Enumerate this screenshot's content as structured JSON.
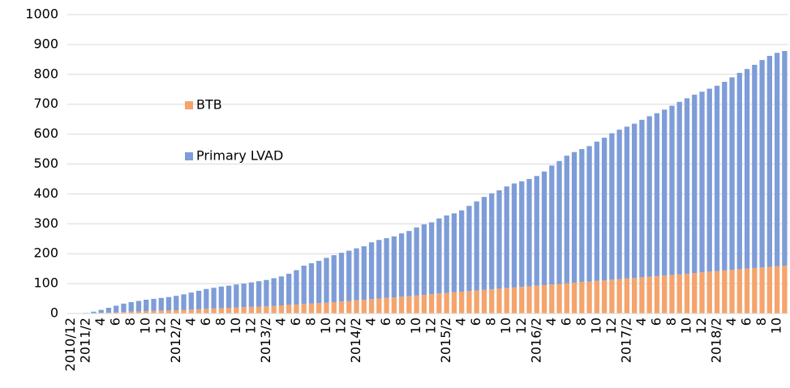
{
  "chart_data": {
    "type": "stacked_bar",
    "categories": [
      "2010/12",
      null,
      "2011/2",
      null,
      "4",
      null,
      "6",
      null,
      "8",
      null,
      "10",
      null,
      "12",
      null,
      "2012/2",
      null,
      "4",
      null,
      "6",
      null,
      "8",
      null,
      "10",
      null,
      "12",
      null,
      "2013/2",
      null,
      "4",
      null,
      "6",
      null,
      "8",
      null,
      "10",
      null,
      "12",
      null,
      "2014/2",
      null,
      "4",
      null,
      "6",
      null,
      "8",
      null,
      "10",
      null,
      "12",
      null,
      "2015/2",
      null,
      "4",
      null,
      "6",
      null,
      "8",
      null,
      "10",
      null,
      "12",
      null,
      "2016/2",
      null,
      "4",
      null,
      "6",
      null,
      "8",
      null,
      "10",
      null,
      "12",
      null,
      "2017/2",
      null,
      "4",
      null,
      "6",
      null,
      "8",
      null,
      "10",
      null,
      "12",
      null,
      "2018/2",
      null,
      "4",
      null,
      "6",
      null,
      "8",
      null,
      "10",
      null
    ],
    "series": [
      {
        "name": "BTB",
        "color": "#f4a46c",
        "values": [
          0,
          0,
          0,
          1,
          2,
          3,
          4,
          5,
          6,
          7,
          8,
          9,
          10,
          10,
          11,
          12,
          13,
          14,
          16,
          17,
          18,
          19,
          20,
          21,
          22,
          23,
          24,
          25,
          27,
          29,
          30,
          32,
          33,
          35,
          36,
          38,
          40,
          42,
          44,
          46,
          48,
          50,
          52,
          54,
          56,
          58,
          60,
          62,
          65,
          67,
          69,
          71,
          73,
          75,
          77,
          79,
          81,
          83,
          85,
          87,
          89,
          91,
          93,
          95,
          97,
          99,
          101,
          103,
          105,
          107,
          109,
          111,
          113,
          115,
          117,
          119,
          121,
          123,
          125,
          127,
          129,
          131,
          133,
          135,
          138,
          140,
          142,
          144,
          146,
          148,
          150,
          152,
          154,
          156,
          158,
          160
        ]
      },
      {
        "name": "Primary LVAD",
        "color": "#7e9dd8",
        "values": [
          1,
          1,
          2,
          5,
          10,
          16,
          22,
          28,
          32,
          35,
          38,
          40,
          42,
          45,
          48,
          52,
          57,
          62,
          66,
          69,
          72,
          74,
          77,
          79,
          82,
          85,
          88,
          93,
          97,
          104,
          115,
          128,
          135,
          141,
          150,
          157,
          163,
          168,
          174,
          179,
          190,
          196,
          200,
          204,
          212,
          218,
          228,
          236,
          240,
          251,
          259,
          264,
          272,
          285,
          298,
          311,
          321,
          329,
          340,
          348,
          353,
          359,
          367,
          380,
          398,
          411,
          427,
          437,
          445,
          453,
          466,
          477,
          490,
          500,
          508,
          516,
          527,
          537,
          545,
          555,
          566,
          577,
          587,
          597,
          604,
          612,
          620,
          631,
          644,
          657,
          668,
          680,
          694,
          706,
          714,
          718
        ]
      }
    ],
    "ylim": [
      0,
      1000
    ],
    "yticks": [
      0,
      100,
      200,
      300,
      400,
      500,
      600,
      700,
      800,
      900,
      1000
    ],
    "grid": true
  }
}
